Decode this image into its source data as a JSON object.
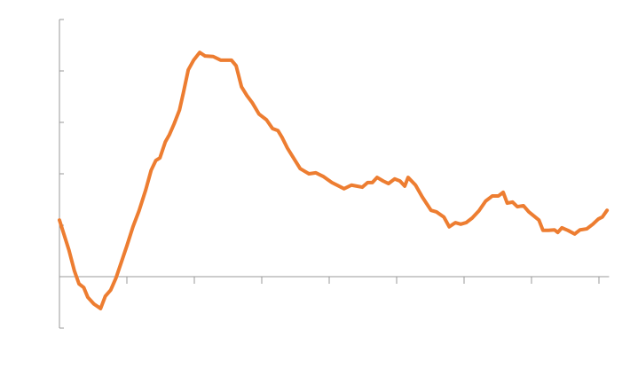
{
  "chart_data": {
    "type": "line",
    "x": [
      0,
      0.14,
      0.22,
      0.29,
      0.36,
      0.42,
      0.51,
      0.61,
      0.68,
      0.76,
      0.84,
      0.92,
      1.0,
      1.09,
      1.18,
      1.28,
      1.36,
      1.43,
      1.49,
      1.57,
      1.63,
      1.7,
      1.78,
      1.84,
      1.91,
      1.99,
      2.08,
      2.16,
      2.28,
      2.39,
      2.55,
      2.62,
      2.7,
      2.78,
      2.86,
      2.96,
      3.07,
      3.16,
      3.24,
      3.3,
      3.38,
      3.46,
      3.57,
      3.7,
      3.8,
      3.91,
      4.04,
      4.22,
      4.33,
      4.49,
      4.57,
      4.64,
      4.71,
      4.8,
      4.88,
      4.97,
      5.05,
      5.12,
      5.17,
      5.28,
      5.38,
      5.51,
      5.59,
      5.7,
      5.78,
      5.87,
      5.95,
      6.03,
      6.12,
      6.22,
      6.32,
      6.42,
      6.51,
      6.58,
      6.64,
      6.72,
      6.79,
      6.88,
      6.96,
      7.11,
      7.17,
      7.25,
      7.34,
      7.39,
      7.45,
      7.54,
      7.64,
      7.72,
      7.82,
      7.91,
      7.99,
      8.05,
      8.12
    ],
    "values": [
      1.1,
      0.52,
      0.12,
      -0.14,
      -0.21,
      -0.4,
      -0.53,
      -0.62,
      -0.38,
      -0.26,
      -0.02,
      0.29,
      0.6,
      0.97,
      1.28,
      1.69,
      2.07,
      2.26,
      2.31,
      2.62,
      2.76,
      2.97,
      3.24,
      3.59,
      4.02,
      4.21,
      4.36,
      4.29,
      4.28,
      4.21,
      4.21,
      4.1,
      3.69,
      3.52,
      3.38,
      3.16,
      3.05,
      2.88,
      2.84,
      2.71,
      2.5,
      2.33,
      2.1,
      2.0,
      2.02,
      1.95,
      1.83,
      1.71,
      1.78,
      1.74,
      1.83,
      1.83,
      1.93,
      1.86,
      1.81,
      1.9,
      1.86,
      1.76,
      1.93,
      1.78,
      1.55,
      1.29,
      1.26,
      1.16,
      0.97,
      1.05,
      1.02,
      1.05,
      1.14,
      1.28,
      1.47,
      1.57,
      1.57,
      1.64,
      1.43,
      1.45,
      1.36,
      1.38,
      1.26,
      1.1,
      0.9,
      0.9,
      0.91,
      0.86,
      0.95,
      0.9,
      0.83,
      0.91,
      0.93,
      1.02,
      1.12,
      1.16,
      1.29
    ],
    "color": "#ed7d31",
    "xlim": [
      0,
      8.15
    ],
    "xticks": [
      1,
      2,
      3,
      4,
      5,
      6,
      7,
      8
    ],
    "ylim": [
      -1,
      5
    ],
    "yticks": [
      -1,
      0,
      1,
      2,
      3,
      4,
      5
    ]
  }
}
